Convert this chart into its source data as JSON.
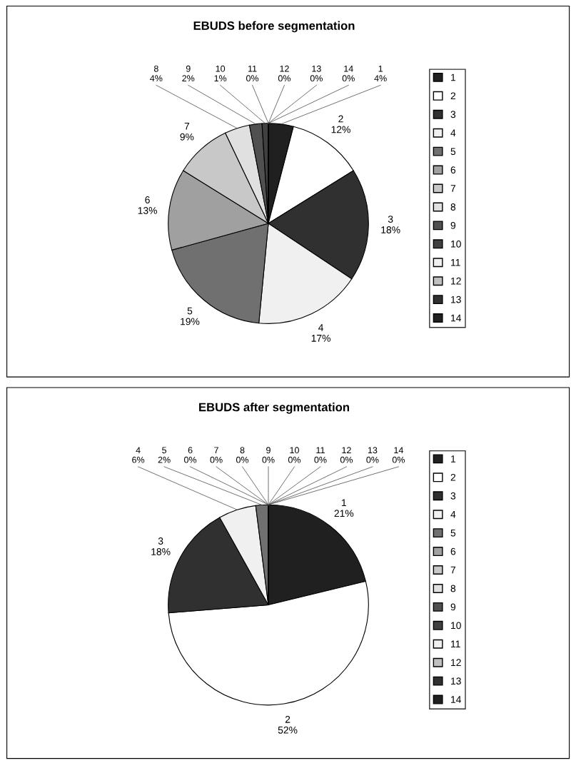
{
  "chart_data": [
    {
      "type": "pie",
      "title": "EBUDS before segmentation",
      "legend": "right",
      "categories": [
        "1",
        "2",
        "3",
        "4",
        "5",
        "6",
        "7",
        "8",
        "9",
        "10",
        "11",
        "12",
        "13",
        "14"
      ],
      "values": [
        4,
        12,
        18,
        17,
        19,
        13,
        9,
        4,
        2,
        1,
        0,
        0,
        0,
        0
      ],
      "value_labels": [
        "4%",
        "12%",
        "18%",
        "17%",
        "19%",
        "13%",
        "9%",
        "4%",
        "2%",
        "1%",
        "0%",
        "0%",
        "0%",
        "0%"
      ],
      "colors": [
        "#202020",
        "#ffffff",
        "#303030",
        "#f0f0f0",
        "#707070",
        "#a0a0a0",
        "#c8c8c8",
        "#e0e0e0",
        "#505050",
        "#404040",
        "#f0f0f0",
        "#c0c0c0",
        "#303030",
        "#202020"
      ]
    },
    {
      "type": "pie",
      "title": "EBUDS after segmentation",
      "legend": "right",
      "categories": [
        "1",
        "2",
        "3",
        "4",
        "5",
        "6",
        "7",
        "8",
        "9",
        "10",
        "11",
        "12",
        "13",
        "14"
      ],
      "values": [
        21,
        52,
        18,
        6,
        2,
        0,
        0,
        0,
        0,
        0,
        0,
        0,
        0,
        0
      ],
      "value_labels": [
        "21%",
        "52%",
        "18%",
        "6%",
        "2%",
        "0%",
        "0%",
        "0%",
        "0%",
        "0%",
        "0%",
        "0%",
        "0%",
        "0%"
      ],
      "colors": [
        "#202020",
        "#ffffff",
        "#303030",
        "#f0f0f0",
        "#707070",
        "#a0a0a0",
        "#c8c8c8",
        "#e0e0e0",
        "#505050",
        "#404040",
        "#f0f0f0",
        "#c0c0c0",
        "#303030",
        "#202020"
      ]
    }
  ]
}
